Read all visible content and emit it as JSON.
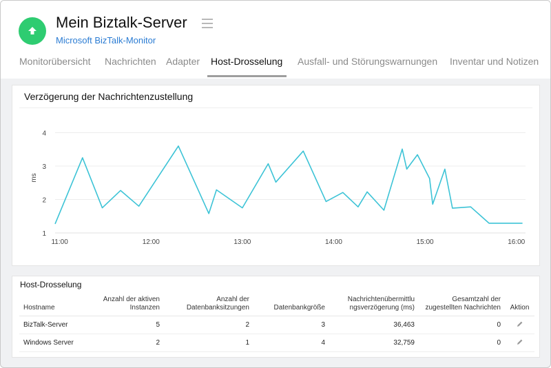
{
  "header": {
    "title": "Mein Biztalk-Server",
    "subtitle": "Microsoft BizTalk-Monitor",
    "status_color": "#2ecc71",
    "status_icon": "arrow-up-icon",
    "menu_icon": "hamburger-menu-icon"
  },
  "tabs": [
    {
      "label": "Monitorübersicht"
    },
    {
      "label": "Nachrichten"
    },
    {
      "label": "Adapter"
    },
    {
      "label": "Host-Drosselung",
      "active": true
    },
    {
      "label": "Ausfall- und Störungswarnungen"
    },
    {
      "label": "Inventar und Notizen"
    }
  ],
  "chart_card": {
    "title": "Verzögerung der Nachrichtenzustellung"
  },
  "chart_data": {
    "type": "line",
    "title": "Verzögerung der Nachrichtenzustellung",
    "xlabel": "",
    "ylabel": "ms",
    "ylim": [
      1,
      4.3
    ],
    "yticks": [
      "1",
      "2",
      "3",
      "4"
    ],
    "xticks": [
      "11:00",
      "12:00",
      "13:00",
      "14:00",
      "15:00",
      "16:00"
    ],
    "xlim": [
      "10:57",
      "16:06"
    ],
    "grid": true,
    "line_color": "#3cc3d6",
    "series": [
      {
        "x": [
          "10:57",
          "11:15",
          "11:28",
          "11:40",
          "11:52",
          "12:18",
          "12:38",
          "12:43",
          "13:00",
          "13:17",
          "13:22",
          "13:40",
          "13:55",
          "14:06",
          "14:16",
          "14:22",
          "14:33",
          "14:45",
          "14:48",
          "14:55",
          "15:03",
          "15:05",
          "15:13",
          "15:18",
          "15:30",
          "15:42",
          "15:44",
          "15:50",
          "15:52",
          "15:53",
          "15:55",
          "15:57",
          "16:04"
        ],
        "y": [
          1.27,
          3.25,
          1.75,
          2.27,
          1.8,
          3.6,
          1.58,
          2.29,
          1.75,
          3.07,
          2.52,
          3.45,
          1.94,
          2.21,
          1.78,
          2.23,
          1.68,
          3.51,
          2.91,
          3.34,
          2.63,
          1.86,
          2.91,
          1.74,
          1.78,
          1.29,
          1.29,
          1.29,
          1.29,
          1.29,
          1.29,
          1.29,
          1.29
        ]
      }
    ]
  },
  "table_card": {
    "title": "Host-Drosselung",
    "columns": [
      "Hostname",
      "Anzahl der aktiven Instanzen",
      "Anzahl der Datenbanksitzungen",
      "Datenbankgröße",
      "Nachrichtenübermittlungsverzögerung (ms)",
      "Gesamtzahl der zugestellten Nachrichten",
      "Aktion"
    ],
    "col_html": {
      "c1a": "Anzahl der aktiven",
      "c1b": "Instanzen",
      "c2a": "Anzahl der",
      "c2b": "Datenbanksitzungen",
      "c4a": "Nachrichtenübermittlu",
      "c4b": "ngsverzögerung (ms)",
      "c5a": "Gesamtzahl der",
      "c5b": "zugestellten Nachrichten"
    },
    "rows": [
      {
        "hostname": "BizTalk-Server",
        "instances": "5",
        "sessions": "2",
        "db_size": "3",
        "delay": "36,463",
        "delivered": "0",
        "action_icon": "pencil-edit-icon"
      },
      {
        "hostname": "Windows Server",
        "instances": "2",
        "sessions": "1",
        "db_size": "4",
        "delay": "32,759",
        "delivered": "0",
        "action_icon": "pencil-edit-icon"
      }
    ]
  }
}
